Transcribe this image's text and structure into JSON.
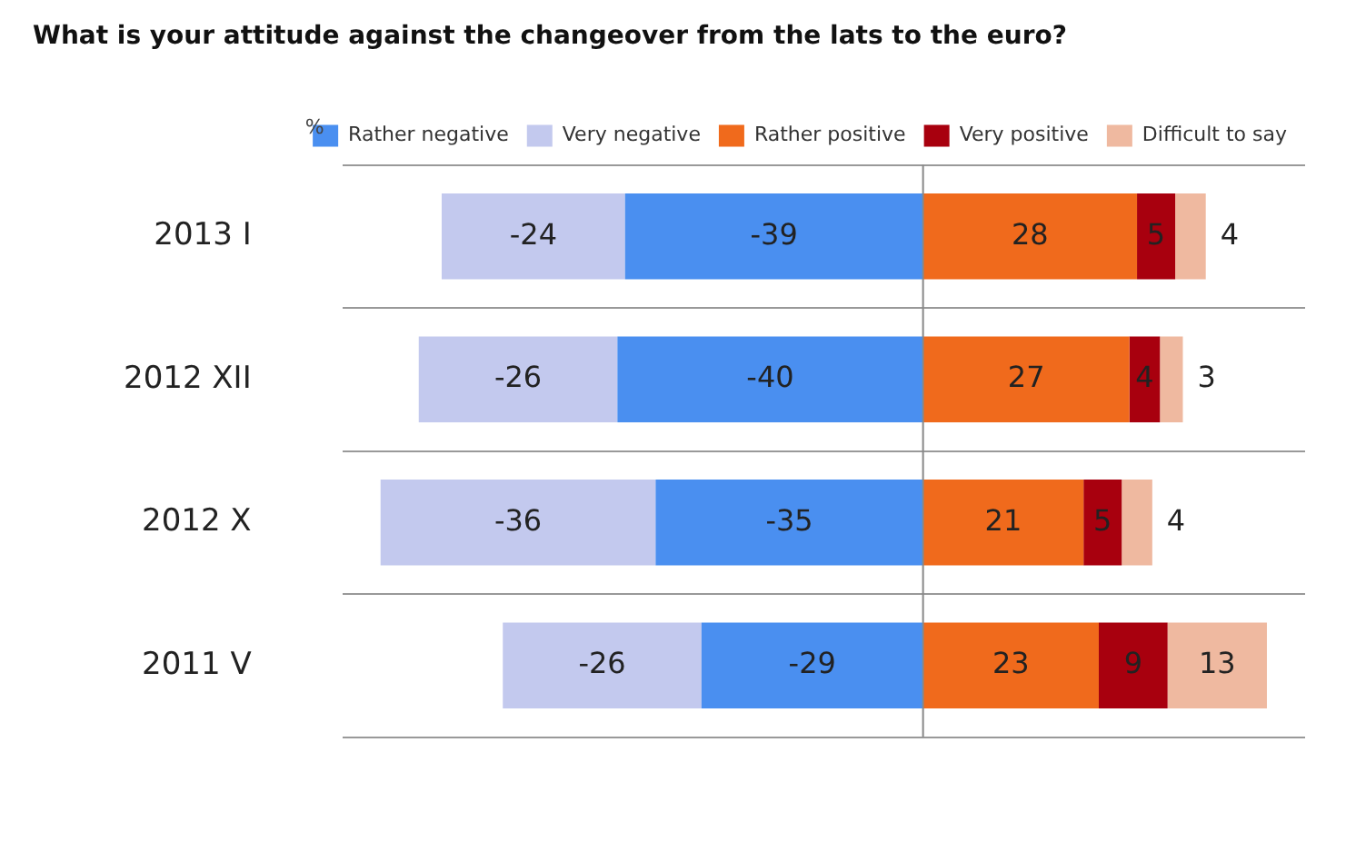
{
  "chart_data": {
    "type": "bar",
    "orientation": "horizontal",
    "stacked": true,
    "title": "What is your attitude against the changeover from the lats to the euro?",
    "annotations": [
      "%"
    ],
    "categories": [
      "2013 I",
      "2012 XII",
      "2012 X",
      "2011 V"
    ],
    "series": [
      {
        "name": "Rather negative",
        "color": "#4a8ff0",
        "values": [
          -39,
          -40,
          -35,
          -29
        ]
      },
      {
        "name": "Very negative",
        "color": "#c3c9ee",
        "values": [
          -24,
          -26,
          -36,
          -26
        ]
      },
      {
        "name": "Rather positive",
        "color": "#f06a1c",
        "values": [
          28,
          27,
          21,
          23
        ]
      },
      {
        "name": "Very positive",
        "color": "#a8000e",
        "values": [
          5,
          4,
          5,
          9
        ]
      },
      {
        "name": "Difficult to say",
        "color": "#efb9a0",
        "values": [
          4,
          3,
          4,
          13
        ]
      }
    ],
    "xlim": [
      -76,
      50
    ],
    "data_labels": true,
    "tick_labels": "y",
    "grid": "y",
    "legend": "top",
    "ref_lines": [
      {
        "axis": "x",
        "value": 0,
        "color": "#888888"
      }
    ]
  }
}
